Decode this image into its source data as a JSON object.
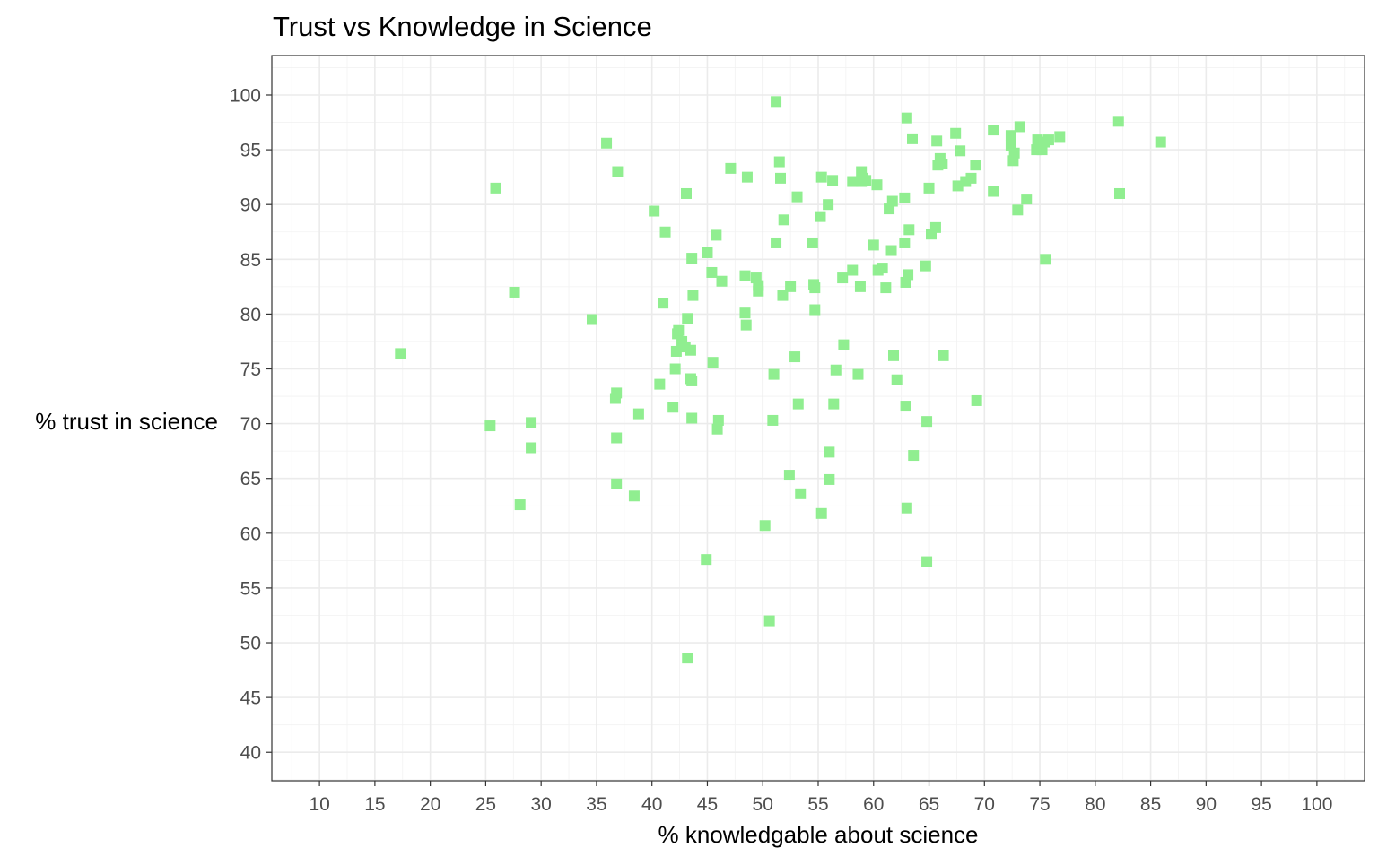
{
  "chart_data": {
    "type": "scatter",
    "title": "Trust vs Knowledge in Science",
    "xlabel": "% knowledgable about science",
    "ylabel": "% trust in science",
    "xlim": [
      5.7,
      104.3
    ],
    "ylim": [
      37.4,
      103.6
    ],
    "x_ticks": [
      10,
      15,
      20,
      25,
      30,
      35,
      40,
      45,
      50,
      55,
      60,
      65,
      70,
      75,
      80,
      85,
      90,
      95,
      100
    ],
    "y_ticks": [
      40,
      45,
      50,
      55,
      60,
      65,
      70,
      75,
      80,
      85,
      90,
      95,
      100
    ],
    "grid": true,
    "marker": "square",
    "point_color": "#90ee90",
    "points": [
      [
        17.3,
        76.4
      ],
      [
        25.4,
        69.8
      ],
      [
        25.9,
        91.5
      ],
      [
        27.6,
        82.0
      ],
      [
        28.1,
        62.6
      ],
      [
        29.1,
        70.1
      ],
      [
        29.1,
        67.8
      ],
      [
        34.6,
        79.5
      ],
      [
        35.9,
        95.6
      ],
      [
        36.7,
        72.3
      ],
      [
        36.8,
        72.8
      ],
      [
        36.8,
        68.7
      ],
      [
        36.8,
        64.5
      ],
      [
        36.9,
        93.0
      ],
      [
        38.4,
        63.4
      ],
      [
        38.8,
        70.9
      ],
      [
        40.2,
        89.4
      ],
      [
        40.7,
        73.6
      ],
      [
        41.0,
        81.0
      ],
      [
        41.2,
        87.5
      ],
      [
        41.9,
        71.5
      ],
      [
        42.1,
        75.0
      ],
      [
        42.2,
        76.6
      ],
      [
        42.3,
        78.2
      ],
      [
        42.4,
        78.5
      ],
      [
        42.7,
        77.5
      ],
      [
        43.0,
        77.0
      ],
      [
        43.1,
        91.0
      ],
      [
        43.2,
        79.6
      ],
      [
        43.2,
        48.6
      ],
      [
        43.5,
        74.1
      ],
      [
        43.5,
        76.7
      ],
      [
        43.6,
        70.5
      ],
      [
        43.6,
        73.9
      ],
      [
        43.6,
        85.1
      ],
      [
        43.7,
        81.7
      ],
      [
        44.9,
        57.6
      ],
      [
        45.0,
        85.6
      ],
      [
        45.4,
        83.8
      ],
      [
        45.5,
        75.6
      ],
      [
        45.8,
        87.2
      ],
      [
        45.9,
        69.5
      ],
      [
        46.0,
        70.3
      ],
      [
        46.3,
        83.0
      ],
      [
        47.1,
        93.3
      ],
      [
        48.4,
        83.5
      ],
      [
        48.4,
        80.1
      ],
      [
        48.5,
        79.0
      ],
      [
        48.6,
        92.5
      ],
      [
        49.4,
        83.3
      ],
      [
        49.6,
        82.6
      ],
      [
        49.6,
        82.1
      ],
      [
        50.2,
        60.7
      ],
      [
        50.6,
        52.0
      ],
      [
        50.9,
        70.3
      ],
      [
        51.0,
        74.5
      ],
      [
        51.2,
        86.5
      ],
      [
        51.2,
        99.4
      ],
      [
        51.5,
        93.9
      ],
      [
        51.6,
        92.4
      ],
      [
        51.8,
        81.7
      ],
      [
        51.9,
        88.6
      ],
      [
        52.4,
        65.3
      ],
      [
        52.5,
        82.5
      ],
      [
        52.9,
        76.1
      ],
      [
        53.1,
        90.7
      ],
      [
        53.2,
        71.8
      ],
      [
        53.4,
        63.6
      ],
      [
        54.5,
        86.5
      ],
      [
        54.6,
        82.7
      ],
      [
        54.7,
        82.4
      ],
      [
        54.7,
        80.4
      ],
      [
        55.2,
        88.9
      ],
      [
        55.3,
        61.8
      ],
      [
        55.3,
        92.5
      ],
      [
        55.9,
        90.0
      ],
      [
        56.0,
        67.4
      ],
      [
        56.0,
        64.9
      ],
      [
        56.3,
        92.2
      ],
      [
        56.4,
        71.8
      ],
      [
        56.6,
        74.9
      ],
      [
        57.2,
        83.3
      ],
      [
        57.3,
        77.2
      ],
      [
        58.1,
        84.0
      ],
      [
        58.1,
        92.1
      ],
      [
        58.6,
        74.5
      ],
      [
        58.8,
        82.5
      ],
      [
        58.9,
        92.1
      ],
      [
        58.9,
        93.0
      ],
      [
        59.0,
        92.4
      ],
      [
        59.3,
        92.2
      ],
      [
        60.0,
        86.3
      ],
      [
        60.3,
        91.8
      ],
      [
        60.4,
        84.0
      ],
      [
        60.8,
        84.2
      ],
      [
        61.1,
        82.4
      ],
      [
        61.4,
        89.6
      ],
      [
        61.6,
        85.8
      ],
      [
        61.7,
        90.3
      ],
      [
        61.8,
        76.2
      ],
      [
        62.1,
        74.0
      ],
      [
        62.8,
        90.6
      ],
      [
        62.8,
        86.5
      ],
      [
        62.9,
        71.6
      ],
      [
        62.9,
        82.9
      ],
      [
        63.0,
        97.9
      ],
      [
        63.0,
        62.3
      ],
      [
        63.1,
        83.6
      ],
      [
        63.2,
        87.7
      ],
      [
        63.5,
        96.0
      ],
      [
        63.6,
        67.1
      ],
      [
        64.7,
        84.4
      ],
      [
        64.8,
        70.2
      ],
      [
        64.8,
        57.4
      ],
      [
        65.0,
        91.5
      ],
      [
        65.2,
        87.3
      ],
      [
        65.6,
        87.9
      ],
      [
        65.7,
        95.8
      ],
      [
        65.8,
        93.6
      ],
      [
        66.0,
        94.2
      ],
      [
        66.2,
        93.7
      ],
      [
        66.3,
        76.2
      ],
      [
        67.4,
        96.5
      ],
      [
        67.6,
        91.7
      ],
      [
        67.8,
        94.9
      ],
      [
        68.3,
        92.1
      ],
      [
        68.8,
        92.4
      ],
      [
        69.2,
        93.6
      ],
      [
        69.3,
        72.1
      ],
      [
        70.8,
        91.2
      ],
      [
        70.8,
        96.8
      ],
      [
        72.4,
        95.4
      ],
      [
        72.4,
        96.3
      ],
      [
        72.6,
        94.0
      ],
      [
        72.7,
        94.7
      ],
      [
        73.0,
        89.5
      ],
      [
        73.2,
        97.1
      ],
      [
        73.8,
        90.5
      ],
      [
        74.7,
        95.0
      ],
      [
        74.8,
        95.9
      ],
      [
        75.0,
        95.3
      ],
      [
        75.2,
        95.0
      ],
      [
        75.4,
        95.7
      ],
      [
        75.5,
        85.0
      ],
      [
        75.8,
        95.9
      ],
      [
        76.8,
        96.2
      ],
      [
        82.1,
        97.6
      ],
      [
        82.2,
        91.0
      ],
      [
        85.9,
        95.7
      ]
    ]
  }
}
